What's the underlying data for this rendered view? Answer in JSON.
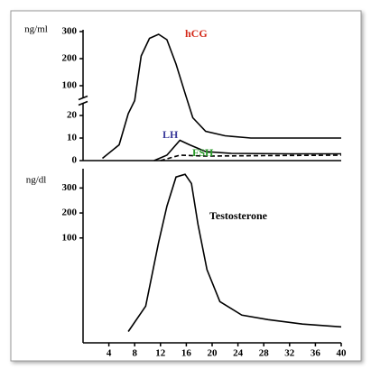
{
  "chart_data": [
    {
      "type": "line",
      "y_label": "ng/ml",
      "xlim": [
        0,
        40
      ],
      "ylim": [
        0,
        300
      ],
      "yticks": [
        0,
        10,
        20,
        100,
        200,
        300
      ],
      "axis_break": true,
      "series": [
        {
          "name": "hCG",
          "color": "#000000",
          "label_color": "#d42a1a",
          "dash": false,
          "x": [
            3,
            5.6,
            7,
            8,
            9,
            10.3,
            11.7,
            13,
            14.4,
            15.8,
            17,
            19,
            22,
            26,
            32,
            40
          ],
          "values": [
            1,
            7,
            25,
            60,
            210,
            275,
            290,
            270,
            180,
            80,
            19,
            13,
            11,
            10,
            10,
            10
          ]
        },
        {
          "name": "LH",
          "color": "#000000",
          "label_color": "#3a3a9a",
          "dash": false,
          "x": [
            11,
            13,
            15,
            16.5,
            19,
            23,
            32,
            40
          ],
          "values": [
            0,
            2.4,
            9,
            7,
            4,
            3.2,
            3,
            3
          ]
        },
        {
          "name": "FSH",
          "color": "#000000",
          "label_color": "#2a9a2a",
          "dash": true,
          "x": [
            12,
            15,
            19,
            28,
            40
          ],
          "values": [
            0,
            2.4,
            2,
            2.2,
            2.4
          ]
        }
      ]
    },
    {
      "type": "line",
      "y_label": "ng/dl",
      "xlim": [
        0,
        40
      ],
      "ylim": [
        -320,
        370
      ],
      "xticks": [
        4,
        8,
        12,
        16,
        20,
        24,
        28,
        32,
        36,
        40
      ],
      "yticks": [
        100,
        200,
        300
      ],
      "series": [
        {
          "name": "Testosterone",
          "color": "#000000",
          "label_color": "#000000",
          "dash": false,
          "x": [
            7,
            9.7,
            11.7,
            13,
            14.4,
            15.8,
            16.8,
            17.8,
            19.2,
            21.2,
            24.6,
            28.7,
            34,
            40
          ],
          "values": [
            -275,
            -173,
            82,
            227,
            344,
            355,
            318,
            155,
            -27,
            -155,
            -209,
            -227,
            -245,
            -256
          ]
        }
      ]
    }
  ]
}
